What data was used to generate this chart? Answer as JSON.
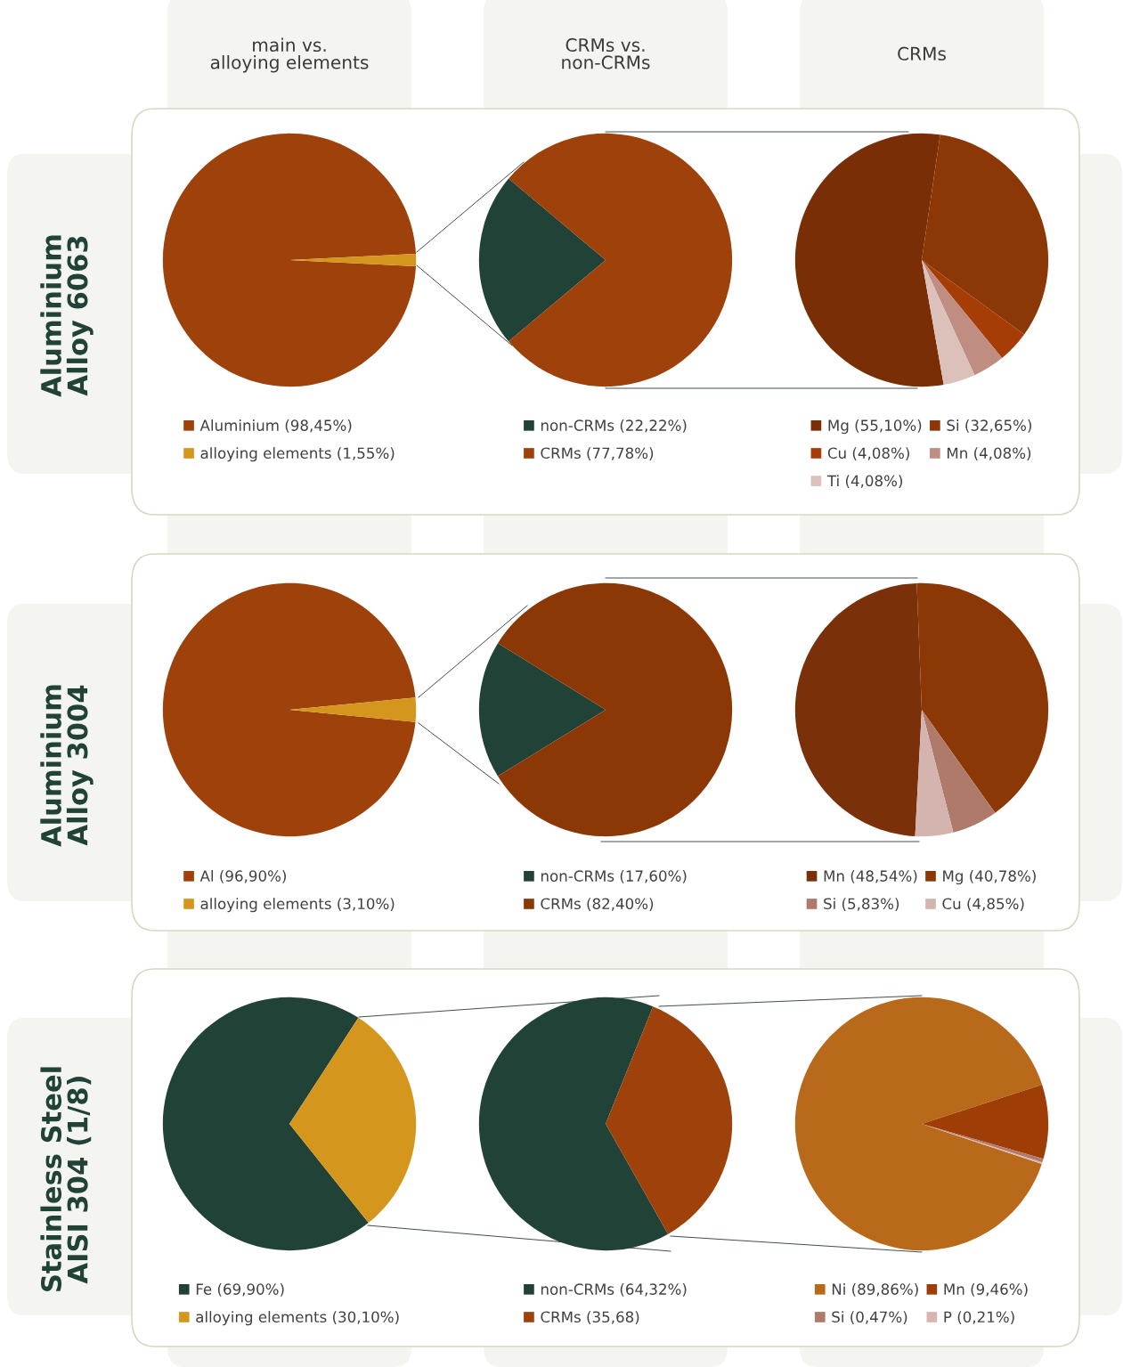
{
  "chart_data": [
    {
      "type": "pie",
      "title": "main vs.\nalloying elements",
      "ylabel": "Aluminium\nAlloy 6063",
      "legend": "bottom",
      "categories": [
        "Aluminium (98,45%)",
        "alloying elements (1,55%)"
      ],
      "values": [
        98.45,
        1.55
      ],
      "colors": [
        "#9e410b",
        "#d4961c"
      ]
    },
    {
      "type": "pie",
      "title": "CRMs vs.\nnon-CRMs",
      "legend": "bottom",
      "categories": [
        "non-CRMs (22,22%)",
        "CRMs (77,78%)"
      ],
      "values": [
        22.22,
        77.78
      ],
      "colors": [
        "#214237",
        "#9e410b"
      ]
    },
    {
      "type": "pie",
      "title": "CRMs",
      "legend": "bottom",
      "categories": [
        "Mg (55,10%)",
        "Si (32,65%)",
        "Cu (4,08%)",
        "Mn (4,08%)",
        "Ti (4,08%)"
      ],
      "values": [
        55.1,
        32.65,
        4.08,
        4.08,
        4.08
      ],
      "colors": [
        "#7a2e06",
        "#8c3806",
        "#a63c06",
        "#bf8d82",
        "#dcc1bb"
      ]
    },
    {
      "type": "pie",
      "ylabel": "Aluminium\nAlloy 3004",
      "legend": "bottom",
      "categories": [
        "Al (96,90%)",
        "alloying elements (3,10%)"
      ],
      "values": [
        96.9,
        3.1
      ],
      "colors": [
        "#9e410b",
        "#d4961c"
      ]
    },
    {
      "type": "pie",
      "legend": "bottom",
      "categories": [
        "non-CRMs (17,60%)",
        "CRMs (82,40%)"
      ],
      "values": [
        17.6,
        82.4
      ],
      "colors": [
        "#214237",
        "#8c3806"
      ]
    },
    {
      "type": "pie",
      "legend": "bottom",
      "categories": [
        "Mn (48,54%)",
        "Mg (40,78%)",
        "Si (5,83%)",
        "Cu (4,85%)"
      ],
      "values": [
        48.54,
        40.78,
        5.83,
        4.85
      ],
      "colors": [
        "#7a3008",
        "#8c3806",
        "#b07a6a",
        "#d4b4ae"
      ]
    },
    {
      "type": "pie",
      "ylabel": "Stainless Steel\nAISI 304 (1/8)",
      "legend": "bottom",
      "categories": [
        "Fe (69,90%)",
        "alloying elements (30,10%)"
      ],
      "values": [
        69.9,
        30.1
      ],
      "colors": [
        "#214237",
        "#d4961c"
      ]
    },
    {
      "type": "pie",
      "legend": "bottom",
      "categories": [
        "non-CRMs (64,32%)",
        "CRMs (35,68)"
      ],
      "values": [
        64.32,
        35.68
      ],
      "colors": [
        "#214237",
        "#9e410b"
      ]
    },
    {
      "type": "pie",
      "legend": "bottom",
      "categories": [
        "Ni (89,86%)",
        "Mn (9,46%)",
        "Si (0,47%)",
        "P (0,21%)"
      ],
      "values": [
        89.86,
        9.46,
        0.47,
        0.21
      ],
      "colors": [
        "#b86a1a",
        "#9e3d06",
        "#b07a6a",
        "#d9b5b0"
      ]
    }
  ]
}
